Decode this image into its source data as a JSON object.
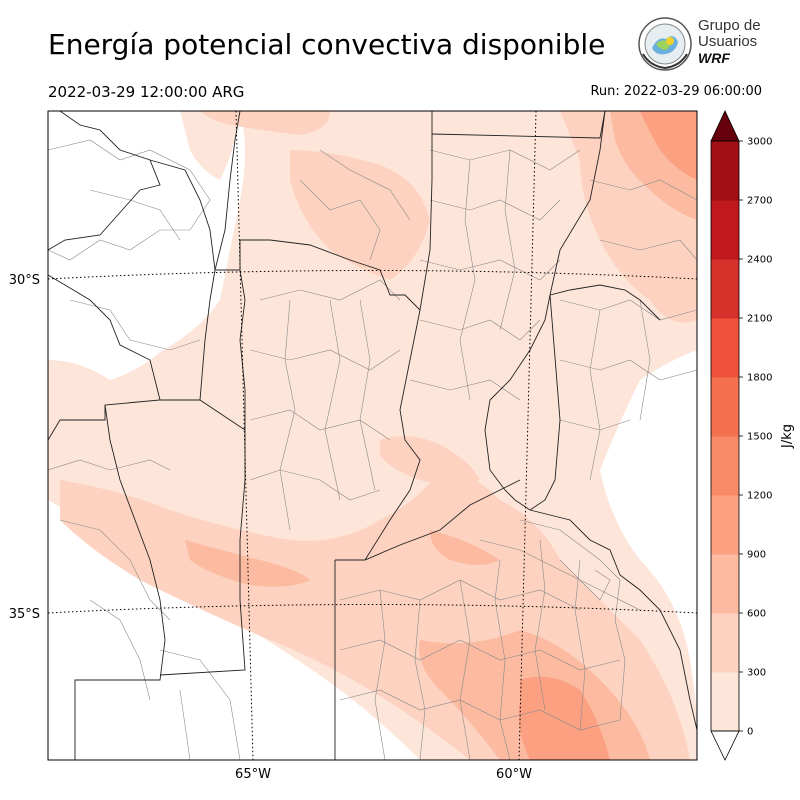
{
  "header": {
    "title": "Energía potencial convectiva disponible",
    "valid_time": "2022-03-29 12:00:00 ARG",
    "run_time": "Run: 2022-03-29 06:00:00"
  },
  "logo": {
    "line1": "Grupo de",
    "line2": "Usuarios",
    "line3": "WRF",
    "icon": "globe-seal-icon"
  },
  "map": {
    "lat_labels": [
      "30°S",
      "35°S"
    ],
    "lon_labels": [
      "65°W",
      "60°W"
    ],
    "colors": {
      "border_country": "#222222",
      "border_department": "#8a8a8a",
      "graticule": "#000000"
    }
  },
  "colorbar": {
    "unit": "J/kg",
    "ticks": [
      "0",
      "300",
      "600",
      "900",
      "1200",
      "1500",
      "1800",
      "2100",
      "2400",
      "2700",
      "3000"
    ],
    "colors": [
      "#fee5d9",
      "#fdd2c0",
      "#fcbba1",
      "#fca082",
      "#fb8a6a",
      "#f4704f",
      "#ef533b",
      "#d6312a",
      "#c0181d",
      "#a10f15",
      "#7d0810"
    ],
    "extend_low_color": "#ffffff",
    "extend_high_color": "#67000d"
  },
  "chart_data": {
    "type": "heatmap",
    "title": "Energía potencial convectiva disponible",
    "variable_unit": "J/kg",
    "levels": [
      0,
      300,
      600,
      900,
      1200,
      1500,
      1800,
      2100,
      2400,
      2700,
      3000
    ],
    "extend": "both",
    "legend_placement": "right"
  }
}
